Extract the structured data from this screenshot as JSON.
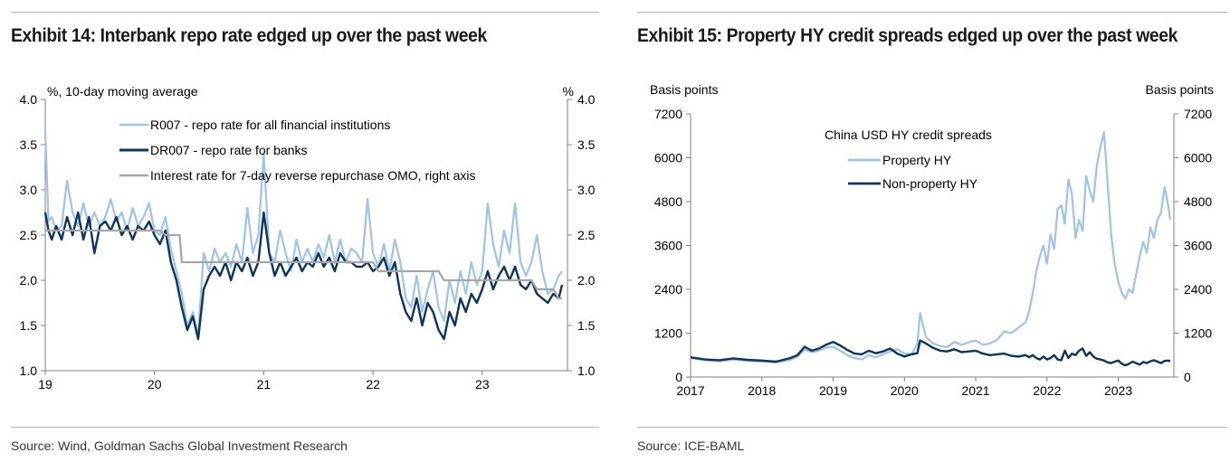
{
  "exhibits": [
    {
      "title": "Exhibit 14: Interbank repo rate edged up over the past week",
      "source": "Source: Wind, Goldman Sachs Global Investment Research"
    },
    {
      "title": "Exhibit 15: Property HY credit spreads edged up over the past week",
      "source": "Source: ICE-BAML"
    }
  ],
  "chart_data": [
    {
      "type": "line",
      "title": "Interbank repo rate edged up over the past week",
      "ylabel_left": "%, 10-day moving average",
      "ylabel_right": "%",
      "ylim": [
        1.0,
        4.0
      ],
      "yticks": [
        "1.0",
        "1.5",
        "2.0",
        "2.5",
        "3.0",
        "3.5",
        "4.0"
      ],
      "xlim": [
        2019.0,
        2023.78
      ],
      "xticks": [
        {
          "v": 2019,
          "label": "19"
        },
        {
          "v": 2020,
          "label": "20"
        },
        {
          "v": 2021,
          "label": "21"
        },
        {
          "v": 2022,
          "label": "22"
        },
        {
          "v": 2023,
          "label": "23"
        }
      ],
      "colors": {
        "r007": "#9dc3e6",
        "dr007": "#0c3559",
        "omo": "#a6a6a6"
      },
      "series": [
        {
          "key": "r007",
          "name": "R007 - repo rate for all financial institutions",
          "x": [
            2019.0,
            2019.03,
            2019.06,
            2019.1,
            2019.15,
            2019.2,
            2019.25,
            2019.3,
            2019.35,
            2019.4,
            2019.45,
            2019.5,
            2019.55,
            2019.6,
            2019.65,
            2019.7,
            2019.75,
            2019.8,
            2019.85,
            2019.9,
            2019.95,
            2020.0,
            2020.05,
            2020.1,
            2020.15,
            2020.2,
            2020.25,
            2020.3,
            2020.35,
            2020.4,
            2020.45,
            2020.5,
            2020.55,
            2020.6,
            2020.65,
            2020.7,
            2020.75,
            2020.8,
            2020.85,
            2020.9,
            2020.95,
            2021.0,
            2021.05,
            2021.1,
            2021.15,
            2021.2,
            2021.25,
            2021.3,
            2021.35,
            2021.4,
            2021.45,
            2021.5,
            2021.55,
            2021.6,
            2021.65,
            2021.7,
            2021.75,
            2021.8,
            2021.85,
            2021.9,
            2021.95,
            2022.0,
            2022.05,
            2022.1,
            2022.15,
            2022.2,
            2022.25,
            2022.3,
            2022.35,
            2022.4,
            2022.45,
            2022.5,
            2022.55,
            2022.6,
            2022.65,
            2022.7,
            2022.75,
            2022.8,
            2022.85,
            2022.9,
            2022.95,
            2023.0,
            2023.05,
            2023.1,
            2023.15,
            2023.2,
            2023.25,
            2023.3,
            2023.35,
            2023.4,
            2023.45,
            2023.5,
            2023.55,
            2023.6,
            2023.65,
            2023.7,
            2023.73
          ],
          "values": [
            3.65,
            2.65,
            2.7,
            2.55,
            2.6,
            3.1,
            2.75,
            2.6,
            2.85,
            2.6,
            2.75,
            2.6,
            2.7,
            2.9,
            2.65,
            2.75,
            2.55,
            2.8,
            2.6,
            2.7,
            2.85,
            2.55,
            2.5,
            2.7,
            2.35,
            2.1,
            1.85,
            1.5,
            1.65,
            1.4,
            2.3,
            2.1,
            2.35,
            2.2,
            2.3,
            2.15,
            2.4,
            2.2,
            2.8,
            2.3,
            2.5,
            3.4,
            2.3,
            2.2,
            2.55,
            2.3,
            2.1,
            2.45,
            2.2,
            2.35,
            2.2,
            2.4,
            2.25,
            2.5,
            2.2,
            2.45,
            2.2,
            2.35,
            2.3,
            2.2,
            2.9,
            2.3,
            2.15,
            2.4,
            2.1,
            2.45,
            2.2,
            1.8,
            1.7,
            2.05,
            1.65,
            1.9,
            2.1,
            1.7,
            1.55,
            2.0,
            1.75,
            2.1,
            1.85,
            2.2,
            1.95,
            2.1,
            2.85,
            2.4,
            2.15,
            2.55,
            2.3,
            2.85,
            2.2,
            2.05,
            2.2,
            2.5,
            2.1,
            1.85,
            1.9,
            2.05,
            2.1
          ]
        },
        {
          "key": "dr007",
          "name": "DR007 - repo rate for banks",
          "x": [
            2019.0,
            2019.03,
            2019.06,
            2019.1,
            2019.15,
            2019.2,
            2019.25,
            2019.3,
            2019.35,
            2019.4,
            2019.45,
            2019.5,
            2019.55,
            2019.6,
            2019.65,
            2019.7,
            2019.75,
            2019.8,
            2019.85,
            2019.9,
            2019.95,
            2020.0,
            2020.05,
            2020.1,
            2020.15,
            2020.2,
            2020.25,
            2020.3,
            2020.35,
            2020.4,
            2020.45,
            2020.5,
            2020.55,
            2020.6,
            2020.65,
            2020.7,
            2020.75,
            2020.8,
            2020.85,
            2020.9,
            2020.95,
            2021.0,
            2021.05,
            2021.1,
            2021.15,
            2021.2,
            2021.25,
            2021.3,
            2021.35,
            2021.4,
            2021.45,
            2021.5,
            2021.55,
            2021.6,
            2021.65,
            2021.7,
            2021.75,
            2021.8,
            2021.85,
            2021.9,
            2021.95,
            2022.0,
            2022.05,
            2022.1,
            2022.15,
            2022.2,
            2022.25,
            2022.3,
            2022.35,
            2022.4,
            2022.45,
            2022.5,
            2022.55,
            2022.6,
            2022.65,
            2022.7,
            2022.75,
            2022.8,
            2022.85,
            2022.9,
            2022.95,
            2023.0,
            2023.05,
            2023.1,
            2023.15,
            2023.2,
            2023.25,
            2023.3,
            2023.35,
            2023.4,
            2023.45,
            2023.5,
            2023.55,
            2023.6,
            2023.65,
            2023.7,
            2023.73
          ],
          "values": [
            2.75,
            2.55,
            2.45,
            2.6,
            2.45,
            2.7,
            2.5,
            2.75,
            2.45,
            2.7,
            2.3,
            2.6,
            2.65,
            2.55,
            2.7,
            2.5,
            2.6,
            2.45,
            2.6,
            2.55,
            2.65,
            2.5,
            2.4,
            2.55,
            2.2,
            2.0,
            1.7,
            1.45,
            1.6,
            1.35,
            1.9,
            2.05,
            2.15,
            2.05,
            2.2,
            2.0,
            2.2,
            2.1,
            2.25,
            2.05,
            2.2,
            2.75,
            2.3,
            2.05,
            2.2,
            2.05,
            2.15,
            2.25,
            2.1,
            2.2,
            2.15,
            2.3,
            2.15,
            2.25,
            2.1,
            2.3,
            2.2,
            2.2,
            2.15,
            2.15,
            2.2,
            2.1,
            2.15,
            2.25,
            2.05,
            2.2,
            1.85,
            1.65,
            1.55,
            1.8,
            1.5,
            1.75,
            1.65,
            1.45,
            1.35,
            1.65,
            1.5,
            1.8,
            1.65,
            1.85,
            1.75,
            1.9,
            2.1,
            1.9,
            2.05,
            2.15,
            2.0,
            2.15,
            1.95,
            1.9,
            2.0,
            1.85,
            1.8,
            1.75,
            1.85,
            1.8,
            1.95
          ]
        },
        {
          "key": "omo",
          "name": "Interest rate for 7-day reverse repurchase OMO, right axis",
          "step": true,
          "x": [
            2019.0,
            2020.05,
            2020.1,
            2020.23,
            2020.25,
            2022.0,
            2022.05,
            2022.6,
            2022.65,
            2023.45,
            2023.5,
            2023.65,
            2023.7,
            2023.73
          ],
          "values": [
            2.55,
            2.55,
            2.5,
            2.5,
            2.2,
            2.2,
            2.1,
            2.1,
            2.0,
            2.0,
            1.9,
            1.9,
            1.8,
            1.8
          ]
        }
      ]
    },
    {
      "type": "line",
      "title": "Property HY credit spreads edged up over the past week",
      "ylabel_left": "Basis points",
      "ylabel_right": "Basis points",
      "legend_title": "China USD HY credit spreads",
      "ylim": [
        0,
        7200
      ],
      "yticks": [
        "0",
        "1200",
        "2400",
        "3600",
        "4800",
        "6000",
        "7200"
      ],
      "xlim": [
        2017.0,
        2023.78
      ],
      "xticks": [
        {
          "v": 2017,
          "label": "2017"
        },
        {
          "v": 2018,
          "label": "2018"
        },
        {
          "v": 2019,
          "label": "2019"
        },
        {
          "v": 2020,
          "label": "2020"
        },
        {
          "v": 2021,
          "label": "2021"
        },
        {
          "v": 2022,
          "label": "2022"
        },
        {
          "v": 2023,
          "label": "2023"
        }
      ],
      "colors": {
        "property": "#9dc3e6",
        "nonproperty": "#0c3559"
      },
      "series": [
        {
          "key": "property",
          "name": "Property HY",
          "x": [
            2017.0,
            2017.2,
            2017.4,
            2017.6,
            2017.8,
            2018.0,
            2018.2,
            2018.4,
            2018.5,
            2018.6,
            2018.7,
            2018.8,
            2018.9,
            2019.0,
            2019.1,
            2019.2,
            2019.3,
            2019.4,
            2019.5,
            2019.6,
            2019.7,
            2019.8,
            2019.9,
            2020.0,
            2020.1,
            2020.18,
            2020.22,
            2020.3,
            2020.4,
            2020.5,
            2020.6,
            2020.7,
            2020.8,
            2020.9,
            2021.0,
            2021.1,
            2021.2,
            2021.3,
            2021.4,
            2021.5,
            2021.6,
            2021.7,
            2021.75,
            2021.8,
            2021.85,
            2021.9,
            2021.95,
            2022.0,
            2022.05,
            2022.1,
            2022.15,
            2022.2,
            2022.25,
            2022.3,
            2022.35,
            2022.4,
            2022.45,
            2022.5,
            2022.55,
            2022.6,
            2022.65,
            2022.7,
            2022.75,
            2022.8,
            2022.85,
            2022.9,
            2022.95,
            2023.0,
            2023.05,
            2023.1,
            2023.15,
            2023.2,
            2023.25,
            2023.3,
            2023.35,
            2023.4,
            2023.45,
            2023.5,
            2023.55,
            2023.6,
            2023.65,
            2023.7,
            2023.73
          ],
          "values": [
            520,
            460,
            430,
            480,
            440,
            420,
            400,
            470,
            560,
            750,
            680,
            720,
            800,
            830,
            720,
            600,
            520,
            480,
            600,
            540,
            620,
            700,
            760,
            640,
            620,
            900,
            1750,
            1100,
            920,
            850,
            820,
            960,
            880,
            950,
            1000,
            880,
            920,
            1020,
            1250,
            1200,
            1350,
            1500,
            1800,
            2300,
            2900,
            3300,
            3600,
            3100,
            3900,
            3500,
            4600,
            4700,
            4200,
            5400,
            5000,
            3800,
            4300,
            4000,
            5500,
            5100,
            4800,
            5800,
            6300,
            6700,
            5300,
            3900,
            3100,
            2600,
            2300,
            2150,
            2400,
            2300,
            2800,
            3300,
            3700,
            3400,
            4100,
            3800,
            4300,
            4500,
            5200,
            4700,
            4300
          ]
        },
        {
          "key": "nonproperty",
          "name": "Non-property HY",
          "x": [
            2017.0,
            2017.2,
            2017.4,
            2017.6,
            2017.8,
            2018.0,
            2018.2,
            2018.4,
            2018.5,
            2018.6,
            2018.7,
            2018.8,
            2018.9,
            2019.0,
            2019.1,
            2019.2,
            2019.3,
            2019.4,
            2019.5,
            2019.6,
            2019.7,
            2019.8,
            2019.9,
            2020.0,
            2020.1,
            2020.18,
            2020.22,
            2020.3,
            2020.4,
            2020.5,
            2020.6,
            2020.7,
            2020.8,
            2020.9,
            2021.0,
            2021.1,
            2021.2,
            2021.3,
            2021.4,
            2021.5,
            2021.6,
            2021.7,
            2021.75,
            2021.8,
            2021.85,
            2021.9,
            2021.95,
            2022.0,
            2022.05,
            2022.1,
            2022.15,
            2022.2,
            2022.25,
            2022.3,
            2022.35,
            2022.4,
            2022.45,
            2022.5,
            2022.55,
            2022.6,
            2022.65,
            2022.7,
            2022.75,
            2022.8,
            2022.85,
            2022.9,
            2022.95,
            2023.0,
            2023.05,
            2023.1,
            2023.15,
            2023.2,
            2023.25,
            2023.3,
            2023.35,
            2023.4,
            2023.45,
            2023.5,
            2023.55,
            2023.6,
            2023.65,
            2023.7,
            2023.73
          ],
          "values": [
            540,
            480,
            460,
            510,
            470,
            450,
            420,
            520,
            600,
            830,
            720,
            780,
            880,
            960,
            860,
            740,
            640,
            620,
            720,
            650,
            700,
            780,
            640,
            560,
            620,
            650,
            1000,
            920,
            800,
            720,
            700,
            760,
            680,
            700,
            720,
            640,
            600,
            620,
            640,
            580,
            560,
            600,
            540,
            600,
            520,
            480,
            560,
            480,
            520,
            600,
            480,
            460,
            720,
            520,
            640,
            600,
            720,
            780,
            580,
            680,
            560,
            500,
            480,
            450,
            400,
            380,
            420,
            450,
            360,
            320,
            360,
            420,
            380,
            340,
            410,
            380,
            430,
            460,
            420,
            380,
            440,
            450,
            430
          ]
        }
      ]
    }
  ]
}
